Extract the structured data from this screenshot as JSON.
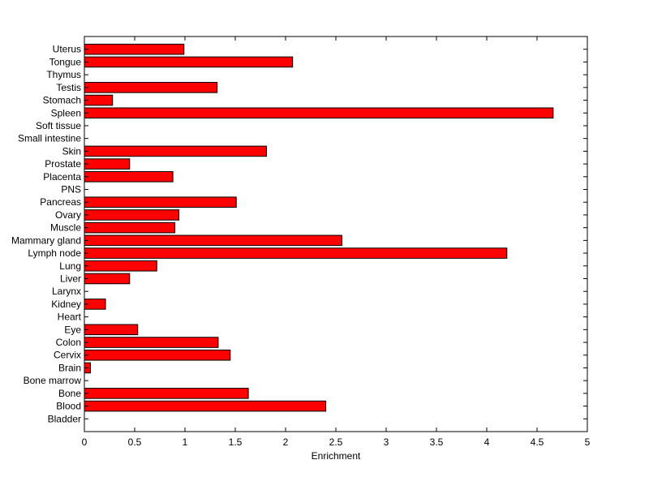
{
  "chart_data": {
    "type": "bar",
    "orientation": "horizontal",
    "title": "",
    "xlabel": "Enrichment",
    "ylabel": "",
    "xlim": [
      0,
      5
    ],
    "xticks": [
      "0",
      "0.5",
      "1",
      "1.5",
      "2",
      "2.5",
      "3",
      "3.5",
      "4",
      "4.5",
      "5"
    ],
    "grid": false,
    "bar_color": "#ff0000",
    "categories": [
      "Uterus",
      "Tongue",
      "Thymus",
      "Testis",
      "Stomach",
      "Spleen",
      "Soft tissue",
      "Small intestine",
      "Skin",
      "Prostate",
      "Placenta",
      "PNS",
      "Pancreas",
      "Ovary",
      "Muscle",
      "Mammary gland",
      "Lymph node",
      "Lung",
      "Liver",
      "Larynx",
      "Kidney",
      "Heart",
      "Eye",
      "Colon",
      "Cervix",
      "Brain",
      "Bone marrow",
      "Bone",
      "Blood",
      "Bladder"
    ],
    "values": [
      0.99,
      2.07,
      0,
      1.32,
      0.28,
      4.66,
      0,
      0,
      1.81,
      0.45,
      0.88,
      0,
      1.51,
      0.94,
      0.9,
      2.56,
      4.2,
      0.72,
      0.45,
      0,
      0.21,
      0,
      0.53,
      1.33,
      1.45,
      0.06,
      0,
      1.63,
      2.4,
      0
    ]
  }
}
